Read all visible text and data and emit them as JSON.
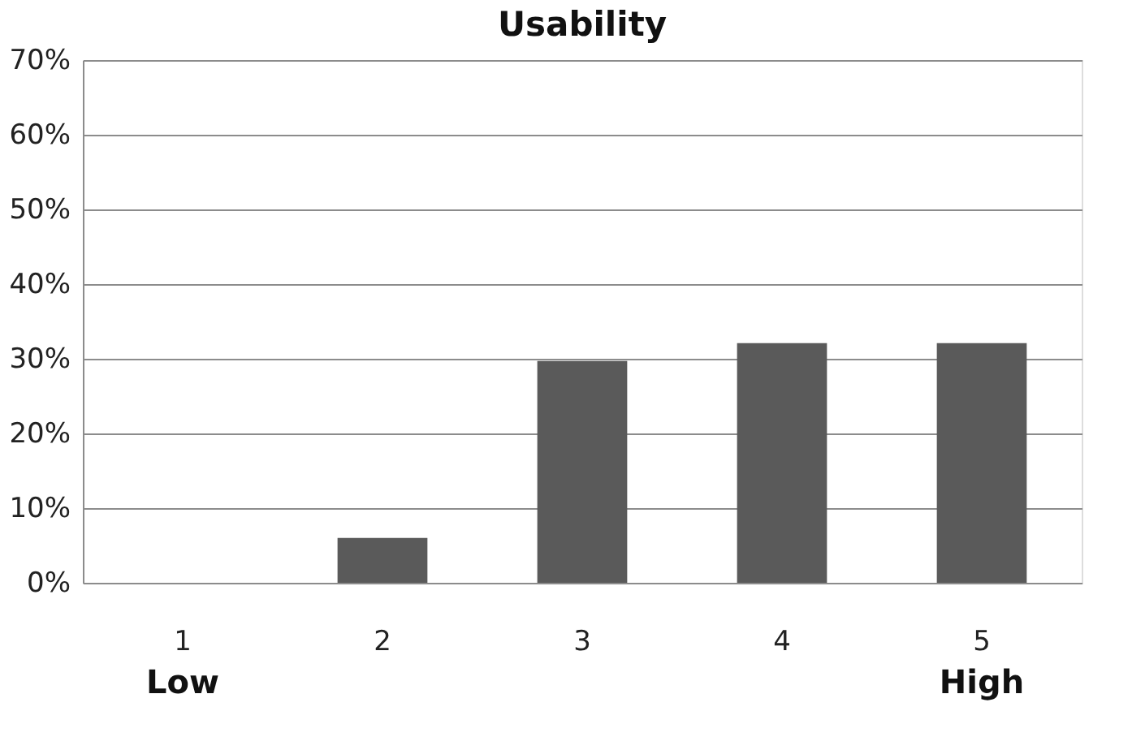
{
  "chart_data": {
    "type": "bar",
    "title": "Usability",
    "categories": [
      "1",
      "2",
      "3",
      "4",
      "5"
    ],
    "values": [
      0,
      6,
      29.7,
      32.1,
      32.1
    ],
    "color": "#5a5a5a",
    "ylim": [
      0,
      70
    ],
    "yticks": [
      {
        "value": 0,
        "label": "0%"
      },
      {
        "value": 10,
        "label": "10%"
      },
      {
        "value": 20,
        "label": "20%"
      },
      {
        "value": 30,
        "label": "30%"
      },
      {
        "value": 40,
        "label": "40%"
      },
      {
        "value": 50,
        "label": "50%"
      },
      {
        "value": 60,
        "label": "60%"
      },
      {
        "value": 70,
        "label": "70%"
      }
    ],
    "grid": "y",
    "annotations": [
      "Low",
      "High"
    ]
  }
}
